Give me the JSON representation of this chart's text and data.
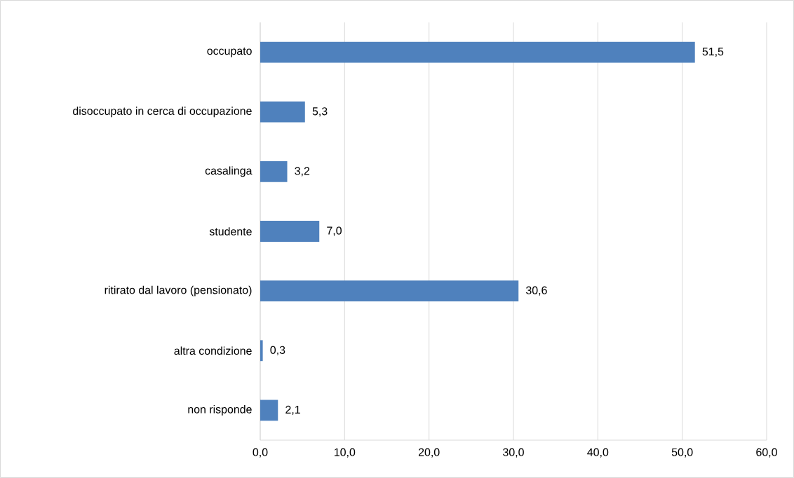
{
  "chart_data": {
    "type": "bar",
    "orientation": "horizontal",
    "categories": [
      "occupato",
      "disoccupato in cerca di occupazione",
      "casalinga",
      "studente",
      "ritirato dal lavoro (pensionato)",
      "altra condizione",
      "non risponde"
    ],
    "values": [
      51.5,
      5.3,
      3.2,
      7.0,
      30.6,
      0.3,
      2.1
    ],
    "value_labels": [
      "51,5",
      "5,3",
      "3,2",
      "7,0",
      "30,6",
      "0,3",
      "2,1"
    ],
    "color": "#4f81bd",
    "xlim": [
      0,
      60
    ],
    "xticks": [
      {
        "value": 0,
        "label": "0,0"
      },
      {
        "value": 10,
        "label": "10,0"
      },
      {
        "value": 20,
        "label": "20,0"
      },
      {
        "value": 30,
        "label": "30,0"
      },
      {
        "value": 40,
        "label": "40,0"
      },
      {
        "value": 50,
        "label": "50,0"
      },
      {
        "value": 60,
        "label": "60,0"
      }
    ],
    "grid": "x"
  }
}
